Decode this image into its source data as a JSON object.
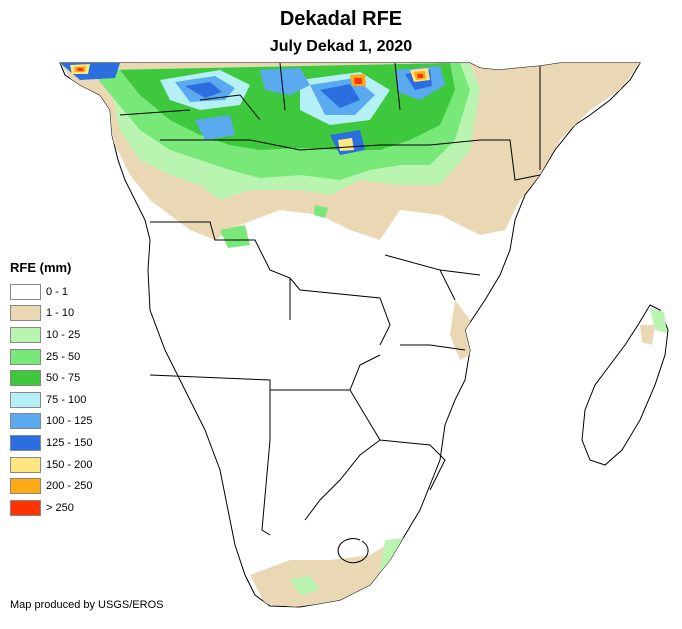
{
  "title": "Dekadal RFE",
  "subtitle": "July Dekad 1, 2020",
  "legend": {
    "title": "RFE (mm)",
    "classes": [
      {
        "label": "0 - 1",
        "color": "#ffffff"
      },
      {
        "label": "1 - 10",
        "color": "#ead7b4"
      },
      {
        "label": "10 - 25",
        "color": "#b9f5b0"
      },
      {
        "label": "25 - 50",
        "color": "#78e878"
      },
      {
        "label": "50 - 75",
        "color": "#3dc83d"
      },
      {
        "label": "75 - 100",
        "color": "#b4f0f5"
      },
      {
        "label": "100 - 125",
        "color": "#5aaaf0"
      },
      {
        "label": "125 - 150",
        "color": "#2a6ee0"
      },
      {
        "label": "150 - 200",
        "color": "#ffe680"
      },
      {
        "label": "200 - 250",
        "color": "#ffaa14"
      },
      {
        "label": "> 250",
        "color": "#ff3200"
      }
    ]
  },
  "credit": "Map produced by USGS/EROS"
}
